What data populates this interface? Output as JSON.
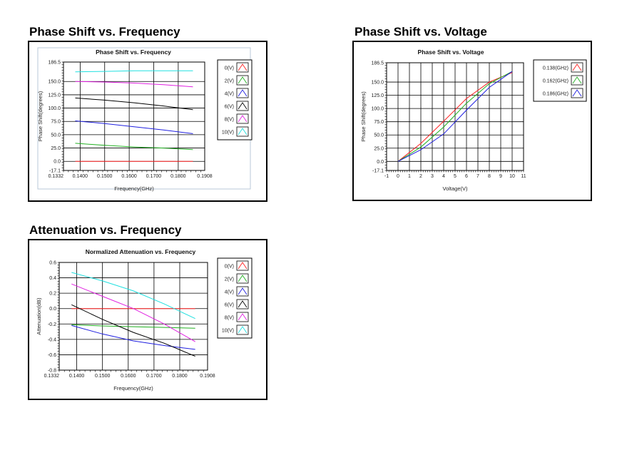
{
  "headings": {
    "phase_freq": "Phase Shift vs. Frequency",
    "phase_volt": "Phase Shift vs. Voltage",
    "atten_freq": "Attenuation vs. Frequency"
  },
  "chart_data": [
    {
      "id": "phase_freq",
      "type": "line",
      "title": "Phase Shift vs. Frequency",
      "xlabel": "Frequency(GHz)",
      "ylabel": "Phase Shift(degrees)",
      "xlim": [
        0.1332,
        0.1908
      ],
      "ylim": [
        -17.1,
        186.5
      ],
      "xticks": [
        "0.1332",
        "0.1400",
        "0.1500",
        "0.1600",
        "0.1700",
        "0.1800",
        "0.1908"
      ],
      "yticks": [
        "186.5",
        "150.0",
        "125.0",
        "100.0",
        "75.0",
        "50.0",
        "25.0",
        "0.0",
        "-17.1"
      ],
      "grid": true,
      "legend_position": "right",
      "x": [
        0.138,
        0.15,
        0.162,
        0.174,
        0.186
      ],
      "series": [
        {
          "name": "0(V)",
          "color": "#ff2020",
          "values": [
            0,
            0,
            0,
            0,
            0
          ]
        },
        {
          "name": "2(V)",
          "color": "#22b022",
          "values": [
            34,
            30,
            27,
            25,
            22
          ]
        },
        {
          "name": "4(V)",
          "color": "#2020e0",
          "values": [
            76,
            71,
            65,
            59,
            52
          ]
        },
        {
          "name": "6(V)",
          "color": "#000000",
          "values": [
            119,
            115,
            110,
            104,
            97
          ]
        },
        {
          "name": "8(V)",
          "color": "#e020e0",
          "values": [
            150,
            149,
            147,
            144,
            140
          ]
        },
        {
          "name": "10(V)",
          "color": "#20e0e0",
          "values": [
            168,
            169,
            170,
            170,
            170
          ]
        }
      ]
    },
    {
      "id": "phase_volt",
      "type": "line",
      "title": "Phase Shift vs. Voltage",
      "xlabel": "Voltage(V)",
      "ylabel": "Phase Shift(degrees)",
      "xlim": [
        -1,
        11
      ],
      "ylim": [
        -17.1,
        186.5
      ],
      "xticks": [
        "-1",
        "0",
        "1",
        "2",
        "3",
        "4",
        "5",
        "6",
        "7",
        "8",
        "9",
        "10",
        "11"
      ],
      "yticks": [
        "186.5",
        "150.0",
        "125.0",
        "100.0",
        "75.0",
        "50.0",
        "25.0",
        "0.0",
        "-17.1"
      ],
      "grid": true,
      "legend_position": "right",
      "x": [
        0,
        2,
        4,
        6,
        8,
        10
      ],
      "series": [
        {
          "name": "0.138(GHz)",
          "color": "#ff2020",
          "values": [
            0,
            34,
            76,
            119,
            150,
            168
          ]
        },
        {
          "name": "0.162(GHz)",
          "color": "#22b022",
          "values": [
            0,
            27,
            65,
            110,
            147,
            170
          ]
        },
        {
          "name": "0.186(GHz)",
          "color": "#2020e0",
          "values": [
            0,
            22,
            52,
            97,
            140,
            170
          ]
        }
      ]
    },
    {
      "id": "atten_freq",
      "type": "line",
      "title": "Normalized Attenuation vs. Frequency",
      "xlabel": "Frequency(GHz)",
      "ylabel": "Attenuation(dB)",
      "xlim": [
        0.1332,
        0.1908
      ],
      "ylim": [
        -0.8,
        0.6
      ],
      "xticks": [
        "0.1332",
        "0.1400",
        "0.1500",
        "0.1600",
        "0.1700",
        "0.1800",
        "0.1908"
      ],
      "yticks": [
        "0.6",
        "0.4",
        "0.2",
        "0.0",
        "-0.2",
        "-0.4",
        "-0.6",
        "-0.8"
      ],
      "grid": true,
      "legend_position": "right",
      "x": [
        0.138,
        0.15,
        0.162,
        0.174,
        0.186
      ],
      "series": [
        {
          "name": "0(V)",
          "color": "#ff2020",
          "values": [
            0,
            0,
            0,
            0,
            0
          ]
        },
        {
          "name": "2(V)",
          "color": "#22b022",
          "values": [
            -0.21,
            -0.225,
            -0.235,
            -0.245,
            -0.255
          ]
        },
        {
          "name": "4(V)",
          "color": "#2020e0",
          "values": [
            -0.22,
            -0.33,
            -0.42,
            -0.48,
            -0.53
          ]
        },
        {
          "name": "6(V)",
          "color": "#000000",
          "values": [
            0.05,
            -0.14,
            -0.31,
            -0.45,
            -0.62
          ]
        },
        {
          "name": "8(V)",
          "color": "#e020e0",
          "values": [
            0.32,
            0.16,
            0.0,
            -0.2,
            -0.43
          ]
        },
        {
          "name": "10(V)",
          "color": "#20e0e0",
          "values": [
            0.47,
            0.36,
            0.23,
            0.06,
            -0.13
          ]
        }
      ]
    }
  ]
}
